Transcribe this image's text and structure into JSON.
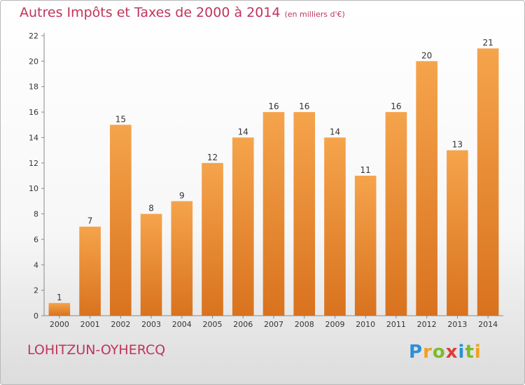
{
  "title": {
    "main": "Autres Impôts et Taxes de 2000 à 2014",
    "unit": "(en milliers d'€)"
  },
  "commune": "LOHITZUN-OYHERCQ",
  "brand": {
    "letters": [
      "P",
      "r",
      "o",
      "x",
      "i",
      "t",
      "i"
    ],
    "colors": [
      "#2e8fd8",
      "#f0a020",
      "#7dbb2b",
      "#e23a3a",
      "#2e8fd8",
      "#7dbb2b",
      "#f0a020"
    ]
  },
  "chart_data": {
    "type": "bar",
    "categories": [
      "2000",
      "2001",
      "2002",
      "2003",
      "2004",
      "2005",
      "2006",
      "2007",
      "2008",
      "2009",
      "2010",
      "2011",
      "2012",
      "2013",
      "2014"
    ],
    "values": [
      1,
      7,
      15,
      8,
      9,
      12,
      14,
      16,
      16,
      14,
      11,
      16,
      20,
      13,
      21
    ],
    "ylim": [
      0,
      22
    ],
    "yticks": [
      0,
      2,
      4,
      6,
      8,
      10,
      12,
      14,
      16,
      18,
      20,
      22
    ],
    "grid": false,
    "bar_color_top": "#f5a44c",
    "bar_color_bottom": "#d9721e",
    "text_color": "#333333"
  }
}
